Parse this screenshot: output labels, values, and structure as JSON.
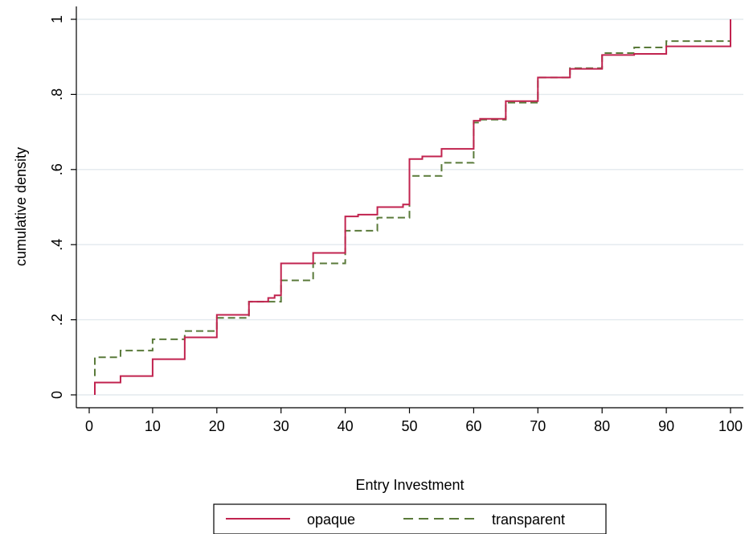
{
  "chart_data": {
    "type": "line",
    "title": "",
    "xlabel": "Entry Investment",
    "ylabel": "cumulative density",
    "xlim": [
      0,
      100
    ],
    "ylim": [
      0,
      1
    ],
    "xticks": [
      0,
      10,
      20,
      30,
      40,
      50,
      60,
      70,
      80,
      90,
      100
    ],
    "xtick_labels": [
      "0",
      "10",
      "20",
      "30",
      "40",
      "50",
      "60",
      "70",
      "80",
      "90",
      "100"
    ],
    "yticks": [
      0,
      0.2,
      0.4,
      0.6,
      0.8,
      1
    ],
    "ytick_labels": [
      "0",
      ".2",
      ".4",
      ".6",
      ".8",
      "1"
    ],
    "grid": true,
    "legend_position": "bottom",
    "series": [
      {
        "name": "opaque",
        "color": "#c1234f",
        "dash": "solid",
        "x": [
          1,
          1,
          5,
          10,
          15,
          20,
          25,
          28,
          29,
          30,
          35,
          40,
          42,
          45,
          49,
          50,
          52,
          55,
          60,
          61,
          65,
          70,
          75,
          80,
          85,
          90,
          100,
          100
        ],
        "y": [
          0,
          0.033,
          0.05,
          0.095,
          0.153,
          0.213,
          0.248,
          0.258,
          0.265,
          0.35,
          0.378,
          0.475,
          0.48,
          0.5,
          0.507,
          0.628,
          0.635,
          0.655,
          0.73,
          0.735,
          0.782,
          0.845,
          0.868,
          0.905,
          0.908,
          0.928,
          0.935,
          1.0
        ]
      },
      {
        "name": "transparent",
        "color": "#5a7a3a",
        "dash": "dashed",
        "x": [
          1,
          1,
          5,
          10,
          15,
          20,
          25,
          30,
          35,
          40,
          45,
          50,
          55,
          60,
          61,
          65,
          70,
          75,
          80,
          85,
          90,
          100
        ],
        "y": [
          0.05,
          0.1,
          0.118,
          0.148,
          0.17,
          0.205,
          0.248,
          0.305,
          0.35,
          0.437,
          0.472,
          0.583,
          0.618,
          0.725,
          0.733,
          0.778,
          0.845,
          0.87,
          0.91,
          0.925,
          0.942,
          0.948
        ]
      }
    ]
  }
}
